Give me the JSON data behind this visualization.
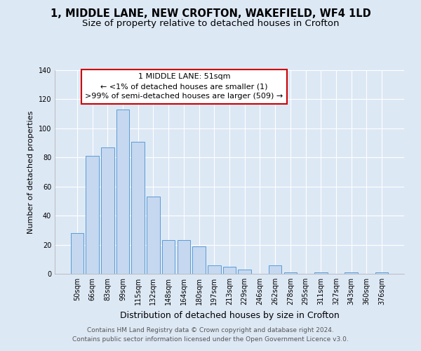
{
  "title1": "1, MIDDLE LANE, NEW CROFTON, WAKEFIELD, WF4 1LD",
  "title2": "Size of property relative to detached houses in Crofton",
  "xlabel": "Distribution of detached houses by size in Crofton",
  "ylabel": "Number of detached properties",
  "bar_labels": [
    "50sqm",
    "66sqm",
    "83sqm",
    "99sqm",
    "115sqm",
    "132sqm",
    "148sqm",
    "164sqm",
    "180sqm",
    "197sqm",
    "213sqm",
    "229sqm",
    "246sqm",
    "262sqm",
    "278sqm",
    "295sqm",
    "311sqm",
    "327sqm",
    "343sqm",
    "360sqm",
    "376sqm"
  ],
  "bar_values": [
    28,
    81,
    87,
    113,
    91,
    53,
    23,
    23,
    19,
    6,
    5,
    3,
    0,
    6,
    1,
    0,
    1,
    0,
    1,
    0,
    1
  ],
  "bar_color": "#c5d8f0",
  "bar_edge_color": "#5b9bd5",
  "ylim": [
    0,
    140
  ],
  "yticks": [
    0,
    20,
    40,
    60,
    80,
    100,
    120,
    140
  ],
  "annotation_title": "1 MIDDLE LANE: 51sqm",
  "annotation_line1": "← <1% of detached houses are smaller (1)",
  "annotation_line2": ">99% of semi-detached houses are larger (509) →",
  "annotation_box_color": "#ffffff",
  "annotation_box_edge": "#cc0000",
  "footer1": "Contains HM Land Registry data © Crown copyright and database right 2024.",
  "footer2": "Contains public sector information licensed under the Open Government Licence v3.0.",
  "bg_color": "#dde8f5",
  "plot_bg_color": "#dde8f5",
  "grid_color": "#ffffff",
  "title_fontsize": 10.5,
  "subtitle_fontsize": 9.5,
  "xlabel_fontsize": 9,
  "ylabel_fontsize": 8,
  "tick_fontsize": 7,
  "annotation_fontsize": 8,
  "footer_fontsize": 6.5
}
